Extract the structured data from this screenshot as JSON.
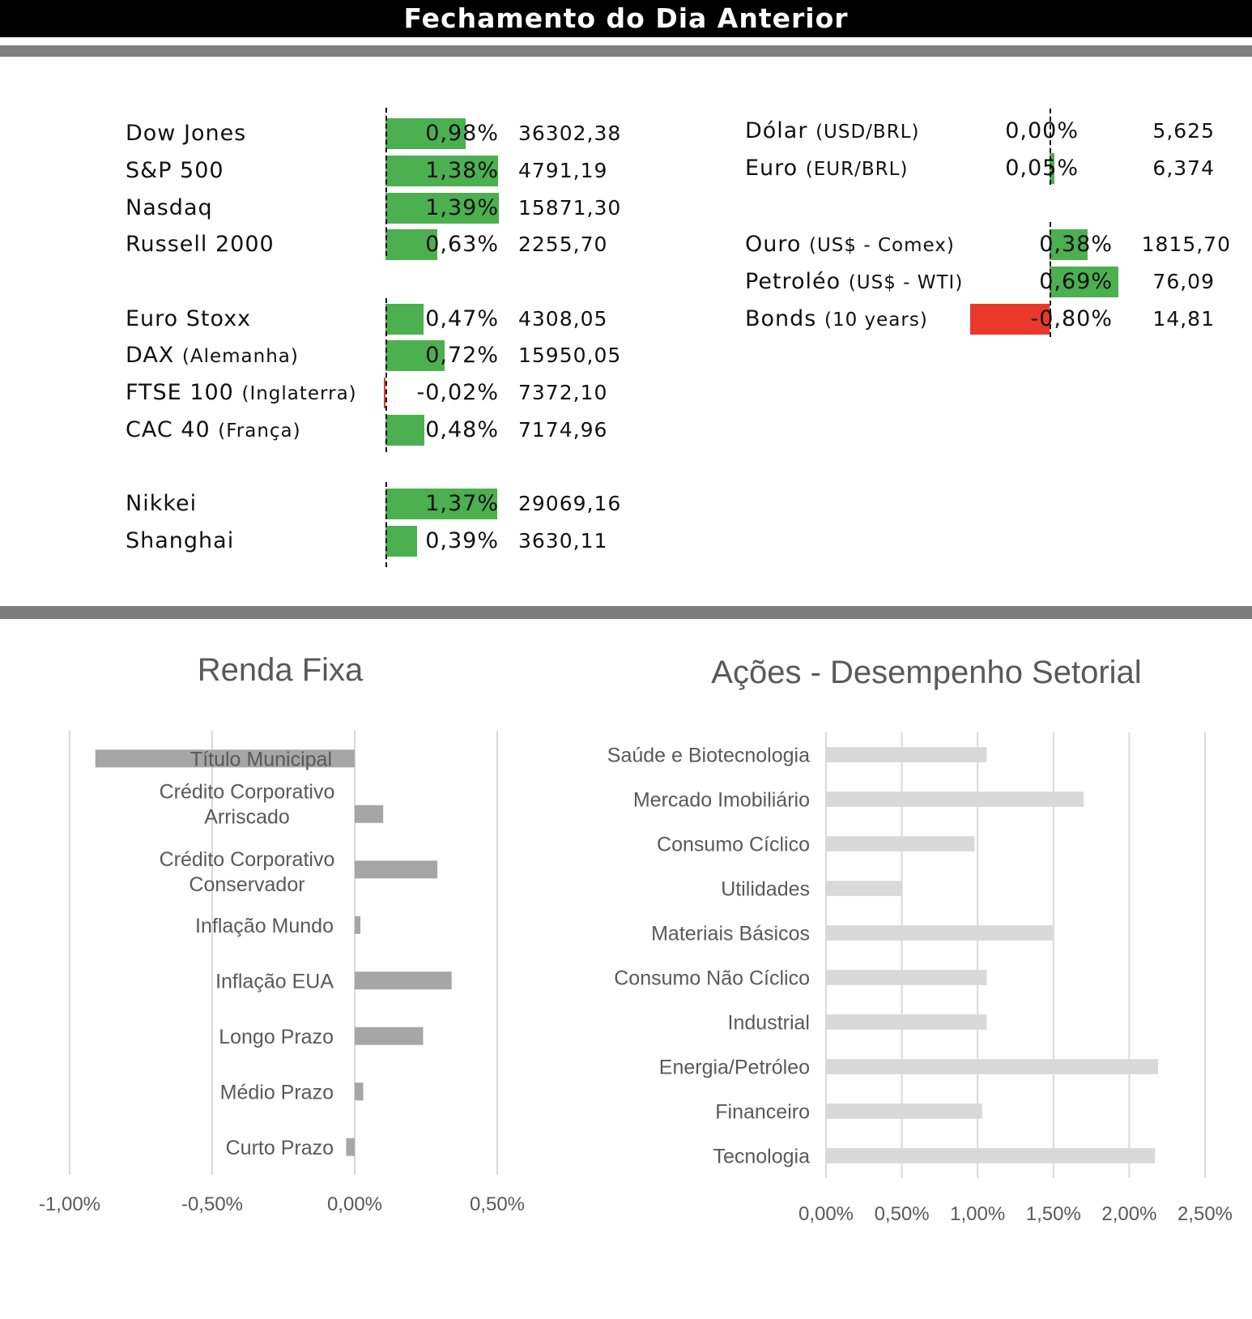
{
  "header": {
    "title": "Fechamento do Dia Anterior"
  },
  "colors": {
    "positive": "#4caf50",
    "negative": "#e8392b",
    "fixed_income_bar": "#a6a6a6",
    "sector_bar": "#d9d9d9",
    "rule": "#7d7d7d"
  },
  "indices": [
    {
      "name": "Dow Jones",
      "sub": "",
      "pct_label": "0,98%",
      "pct": 0.98,
      "value": "36302,38"
    },
    {
      "name": "S&P 500",
      "sub": "",
      "pct_label": "1,38%",
      "pct": 1.38,
      "value": "4791,19"
    },
    {
      "name": "Nasdaq",
      "sub": "",
      "pct_label": "1,39%",
      "pct": 1.39,
      "value": "15871,30"
    },
    {
      "name": "Russell 2000",
      "sub": "",
      "pct_label": "0,63%",
      "pct": 0.63,
      "value": "2255,70"
    },
    {
      "name": "Euro Stoxx",
      "sub": "",
      "pct_label": "0,47%",
      "pct": 0.47,
      "value": "4308,05"
    },
    {
      "name": "DAX",
      "sub": "(Alemanha)",
      "pct_label": "0,72%",
      "pct": 0.72,
      "value": "15950,05"
    },
    {
      "name": "FTSE 100",
      "sub": "(Inglaterra)",
      "pct_label": "-0,02%",
      "pct": -0.02,
      "value": "7372,10"
    },
    {
      "name": "CAC 40",
      "sub": "(França)",
      "pct_label": "0,48%",
      "pct": 0.48,
      "value": "7174,96"
    },
    {
      "name": "Nikkei",
      "sub": "",
      "pct_label": "1,37%",
      "pct": 1.37,
      "value": "29069,16"
    },
    {
      "name": "Shanghai",
      "sub": "",
      "pct_label": "0,39%",
      "pct": 0.39,
      "value": "3630,11"
    }
  ],
  "assets": [
    {
      "name": "Dólar",
      "sub": "(USD/BRL)",
      "pct_label": "0,00%",
      "pct": 0.0,
      "value": "5,625"
    },
    {
      "name": "Euro",
      "sub": "(EUR/BRL)",
      "pct_label": "0,05%",
      "pct": 0.05,
      "value": "6,374"
    },
    {
      "name": "Ouro",
      "sub": "(US$ - Comex)",
      "pct_label": "0,38%",
      "pct": 0.38,
      "value": "1815,70"
    },
    {
      "name": "Petroléo",
      "sub": "(US$ - WTI)",
      "pct_label": "0,69%",
      "pct": 0.69,
      "value": "76,09"
    },
    {
      "name": "Bonds",
      "sub": "(10 years)",
      "pct_label": "-0,80%",
      "pct": -0.8,
      "value": "14,81"
    }
  ],
  "chart_data": [
    {
      "type": "bar",
      "orientation": "horizontal",
      "title": "Renda Fixa",
      "categories": [
        "Título Municipal",
        "Crédito Corporativo Arriscado",
        "Crédito Corporativo Conservador",
        "Inflação Mundo",
        "Inflação EUA",
        "Longo Prazo",
        "Médio Prazo",
        "Curto Prazo"
      ],
      "values": [
        -0.91,
        0.1,
        0.29,
        0.02,
        0.34,
        0.24,
        0.03,
        -0.03
      ],
      "xlim": [
        -1.0,
        0.5
      ],
      "xticks": [
        "-1,00%",
        "-0,50%",
        "0,00%",
        "0,50%"
      ],
      "grid": true
    },
    {
      "type": "bar",
      "orientation": "horizontal",
      "title": "Ações - Desempenho Setorial",
      "categories": [
        "Saúde e Biotecnologia",
        "Mercado Imobiliário",
        "Consumo Cíclico",
        "Utilidades",
        "Materiais Básicos",
        "Consumo Não Cíclico",
        "Industrial",
        "Energia/Petróleo",
        "Financeiro",
        "Tecnologia"
      ],
      "values": [
        1.06,
        1.7,
        0.98,
        0.5,
        1.5,
        1.06,
        1.06,
        2.19,
        1.03,
        2.17
      ],
      "xlim": [
        0,
        2.5
      ],
      "xticks": [
        "0,00%",
        "0,50%",
        "1,00%",
        "1,50%",
        "2,00%",
        "2,50%"
      ],
      "grid": true
    }
  ]
}
